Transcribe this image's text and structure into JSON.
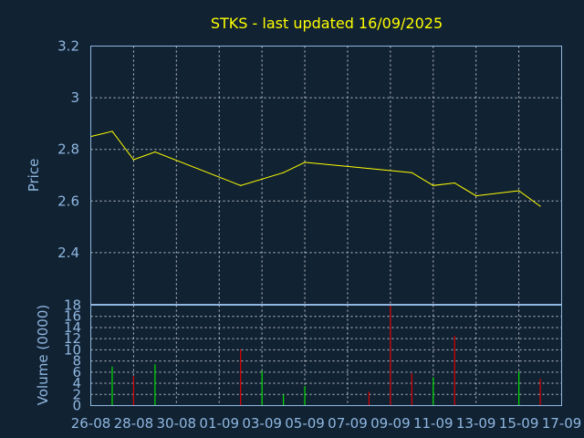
{
  "chart_data": {
    "type": "line",
    "title": "STKS - last updated 16/09/2025",
    "price_panel": {
      "ylabel": "Price",
      "ylim": [
        2.2,
        3.2
      ],
      "yticks": [
        "2.4",
        "2.6",
        "2.8",
        "3",
        "3.2"
      ],
      "line_color": "#ffff00",
      "series": [
        {
          "x": "26-08",
          "y": 2.85
        },
        {
          "x": "27-08",
          "y": 2.87
        },
        {
          "x": "28-08",
          "y": 2.76
        },
        {
          "x": "29-08",
          "y": 2.79
        },
        {
          "x": "02-09",
          "y": 2.66
        },
        {
          "x": "04-09",
          "y": 2.71
        },
        {
          "x": "05-09",
          "y": 2.75
        },
        {
          "x": "10-09",
          "y": 2.71
        },
        {
          "x": "11-09",
          "y": 2.66
        },
        {
          "x": "12-09",
          "y": 2.67
        },
        {
          "x": "13-09",
          "y": 2.62
        },
        {
          "x": "15-09",
          "y": 2.64
        },
        {
          "x": "16-09",
          "y": 2.58
        }
      ]
    },
    "volume_panel": {
      "ylabel": "Volume (0000)",
      "ylim": [
        0,
        18
      ],
      "yticks": [
        "0",
        "2",
        "4",
        "6",
        "8",
        "10",
        "12",
        "14",
        "16",
        "18"
      ],
      "up_color": "#00dd00",
      "down_color": "#dd0000",
      "bars": [
        {
          "x": "27-08",
          "value": 7,
          "direction": "up"
        },
        {
          "x": "28-08",
          "value": 5.3,
          "direction": "down"
        },
        {
          "x": "29-08",
          "value": 7.4,
          "direction": "up"
        },
        {
          "x": "02-09",
          "value": 10.1,
          "direction": "down"
        },
        {
          "x": "03-09",
          "value": 6.2,
          "direction": "up"
        },
        {
          "x": "04-09",
          "value": 2,
          "direction": "up"
        },
        {
          "x": "05-09",
          "value": 3.5,
          "direction": "up"
        },
        {
          "x": "08-09",
          "value": 2.5,
          "direction": "down"
        },
        {
          "x": "09-09",
          "value": 18,
          "direction": "down"
        },
        {
          "x": "10-09",
          "value": 5.8,
          "direction": "down"
        },
        {
          "x": "11-09",
          "value": 5.1,
          "direction": "up"
        },
        {
          "x": "12-09",
          "value": 12.5,
          "direction": "down"
        },
        {
          "x": "15-09",
          "value": 6.1,
          "direction": "up"
        },
        {
          "x": "16-09",
          "value": 4.8,
          "direction": "down"
        }
      ]
    },
    "x_axis": {
      "categories": [
        "26-08",
        "27-08",
        "28-08",
        "29-08",
        "30-08",
        "31-08",
        "01-09",
        "02-09",
        "03-09",
        "04-09",
        "05-09",
        "06-09",
        "07-09",
        "08-09",
        "09-09",
        "10-09",
        "11-09",
        "12-09",
        "13-09",
        "14-09",
        "15-09",
        "16-09",
        "17-09"
      ],
      "tick_labels": [
        "26-08",
        "28-08",
        "30-08",
        "01-09",
        "03-09",
        "05-09",
        "07-09",
        "09-09",
        "11-09",
        "13-09",
        "15-09",
        "17-09"
      ]
    },
    "grid": true,
    "colors": {
      "background": "#112233",
      "axis_text": "#8fb7e0",
      "title": "#ffff00"
    }
  }
}
